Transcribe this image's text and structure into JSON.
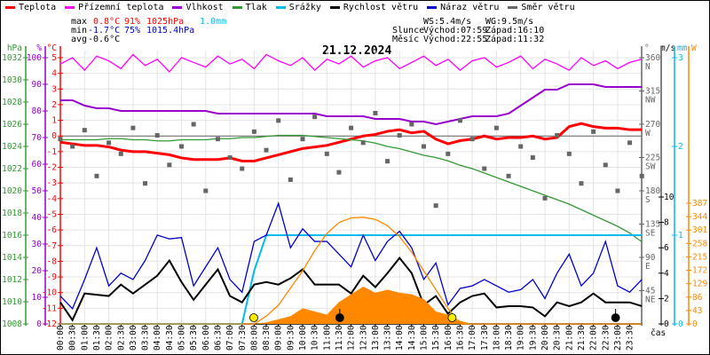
{
  "legend": [
    {
      "label": "Teplota",
      "color": "#ff0000"
    },
    {
      "label": "Přízemní teplota",
      "color": "#ff00ff"
    },
    {
      "label": "Vlhkost",
      "color": "#9900cc"
    },
    {
      "label": "Tlak",
      "color": "#339933"
    },
    {
      "label": "Srážky",
      "color": "#00bbee"
    },
    {
      "label": "Rychlost větru",
      "color": "#000000"
    },
    {
      "label": "Náraz větru",
      "color": "#0000cc"
    },
    {
      "label": "Směr větru",
      "color": "#666666"
    }
  ],
  "stats": {
    "max_label": "max",
    "max_temp": "0.8°C",
    "max_hum": "91%",
    "max_press": "1025hPa",
    "rain": "1.0mm",
    "min_label": "min",
    "min_temp": "-1.7°C",
    "min_hum": "75%",
    "min_press": "1015.4hPa",
    "avg_label": "avg",
    "avg_temp": "-0.6°C",
    "ws": "WS:5.4m/s",
    "wg": "WG:9.5m/s",
    "sun_label": "Slunce",
    "sunrise": "Východ:07:59",
    "sunset": "Západ:16:10",
    "moon_label": "Měsíc",
    "moonrise": "Východ:22:55",
    "moonset": "Západ:11:32"
  },
  "chart_data": {
    "type": "line",
    "title": "21.12.2024",
    "xlabel": "čas",
    "x_ticks": [
      "00:00",
      "00:30",
      "01:00",
      "01:30",
      "02:00",
      "02:30",
      "03:00",
      "03:30",
      "04:00",
      "04:30",
      "05:00",
      "05:30",
      "06:00",
      "06:30",
      "07:00",
      "07:30",
      "08:00",
      "08:30",
      "09:00",
      "09:30",
      "10:00",
      "10:30",
      "11:00",
      "11:30",
      "12:00",
      "12:30",
      "13:00",
      "13:30",
      "14:00",
      "14:30",
      "15:00",
      "15:30",
      "16:00",
      "16:30",
      "17:00",
      "17:30",
      "18:00",
      "18:30",
      "19:00",
      "19:30",
      "20:00",
      "20:30",
      "21:00",
      "21:30",
      "22:00",
      "22:30",
      "23:00",
      "23:30"
    ],
    "axes": {
      "pressure": {
        "unit": "hPa",
        "range": [
          1008,
          1032
        ],
        "ticks": [
          1032,
          1030,
          1028,
          1026,
          1024,
          1022,
          1020,
          1018,
          1016,
          1014,
          1012,
          1010,
          1008
        ],
        "color": "#339933"
      },
      "humidity": {
        "unit": "%",
        "range": [
          0,
          100
        ],
        "ticks": [
          100,
          90,
          80,
          70,
          60,
          50,
          40,
          30,
          20,
          10,
          0
        ],
        "color": "#9900cc"
      },
      "temperature": {
        "unit": "°C",
        "range": [
          -12,
          5
        ],
        "ticks": [
          5,
          4,
          3,
          2,
          1,
          0,
          -1,
          -2,
          -3,
          -4,
          -5,
          -6,
          -7,
          -8,
          -9,
          -10,
          -11,
          -12
        ],
        "color": "#ff0000"
      },
      "direction": {
        "unit": "°",
        "range": [
          0,
          360
        ],
        "ticks": [
          {
            "v": 360,
            "l": "N"
          },
          {
            "v": 315,
            "l": "NW"
          },
          {
            "v": 270,
            "l": "W"
          },
          {
            "v": 225,
            "l": "SW"
          },
          {
            "v": 180,
            "l": "S"
          },
          {
            "v": 135,
            "l": "SE"
          },
          {
            "v": 90,
            "l": "E"
          },
          {
            "v": 45,
            "l": "NE"
          }
        ],
        "color": "#666666"
      },
      "wind": {
        "unit": "m/s",
        "range": [
          0,
          21
        ],
        "ticks": [
          0,
          2,
          4,
          6,
          8,
          10
        ],
        "color": "#000000"
      },
      "rain": {
        "unit": "mm",
        "range": [
          0,
          3
        ],
        "ticks": [
          0,
          1,
          2,
          3
        ],
        "color": "#00bbee"
      },
      "solar": {
        "unit": "W",
        "range": [
          0,
          387
        ],
        "ticks": [
          0,
          43,
          86,
          129,
          172,
          215,
          258,
          301,
          344,
          387
        ],
        "color": "#ff8800"
      }
    },
    "time_hours_step": 0.5,
    "series": [
      {
        "name": "Teplota",
        "axis": "temperature",
        "color": "#ff0000",
        "values": [
          -0.4,
          -0.5,
          -0.6,
          -0.6,
          -0.7,
          -0.9,
          -1.0,
          -1.0,
          -1.1,
          -1.2,
          -1.4,
          -1.5,
          -1.5,
          -1.5,
          -1.4,
          -1.6,
          -1.6,
          -1.4,
          -1.2,
          -1.0,
          -0.8,
          -0.7,
          -0.6,
          -0.4,
          -0.2,
          0.0,
          0.1,
          0.3,
          0.4,
          0.2,
          0.3,
          -0.2,
          -0.5,
          -0.3,
          -0.2,
          0.0,
          -0.2,
          -0.1,
          -0.1,
          0.0,
          -0.2,
          -0.1,
          0.6,
          0.8,
          0.6,
          0.5,
          0.5,
          0.4,
          0.4
        ]
      },
      {
        "name": "Přízemní teplota",
        "axis": "temperature",
        "color": "#ff00ff",
        "values": [
          4.6,
          5.0,
          4.2,
          5.1,
          4.8,
          4.3,
          5.2,
          4.5,
          4.9,
          4.1,
          5.0,
          4.7,
          4.4,
          5.1,
          4.6,
          4.9,
          4.3,
          5.2,
          4.8,
          4.5,
          5.0,
          4.2,
          4.9,
          4.6,
          5.1,
          4.4,
          4.8,
          5.0,
          4.3,
          4.7,
          5.1,
          4.5,
          4.9,
          4.2,
          4.8,
          5.0,
          4.4,
          4.7,
          5.1,
          4.3,
          4.9,
          4.6,
          4.2,
          5.0,
          4.5,
          4.8,
          4.3,
          4.7,
          4.9
        ]
      },
      {
        "name": "Vlhkost",
        "axis": "humidity",
        "color": "#9900cc",
        "values": [
          84,
          84,
          82,
          81,
          81,
          80,
          80,
          80,
          80,
          80,
          80,
          80,
          80,
          79,
          79,
          79,
          79,
          79,
          79,
          79,
          79,
          79,
          78,
          78,
          78,
          78,
          77,
          77,
          77,
          76,
          76,
          75,
          76,
          77,
          78,
          78,
          78,
          79,
          82,
          85,
          88,
          88,
          90,
          90,
          90,
          89,
          89,
          89,
          89
        ]
      },
      {
        "name": "Tlak",
        "axis": "pressure",
        "color": "#339933",
        "values": [
          1024.6,
          1024.6,
          1024.6,
          1024.6,
          1024.7,
          1024.7,
          1024.6,
          1024.6,
          1024.5,
          1024.5,
          1024.6,
          1024.6,
          1024.6,
          1024.7,
          1024.7,
          1024.8,
          1024.8,
          1024.9,
          1025.0,
          1025.0,
          1025.0,
          1024.9,
          1024.8,
          1024.7,
          1024.6,
          1024.5,
          1024.3,
          1024.0,
          1023.8,
          1023.5,
          1023.2,
          1023.0,
          1022.7,
          1022.3,
          1022.0,
          1021.6,
          1021.2,
          1020.8,
          1020.4,
          1020.0,
          1019.6,
          1019.2,
          1018.8,
          1018.3,
          1017.8,
          1017.3,
          1016.8,
          1016.2,
          1015.4
        ]
      },
      {
        "name": "Srážky",
        "axis": "rain",
        "color": "#00bbee",
        "values": [
          0,
          0,
          0,
          0,
          0,
          0,
          0,
          0,
          0,
          0,
          0,
          0,
          0,
          0,
          0,
          0,
          0.6,
          1.0,
          1.0,
          1.0,
          1.0,
          1.0,
          1.0,
          1.0,
          1.0,
          1.0,
          1.0,
          1.0,
          1.0,
          1.0,
          1.0,
          1.0,
          1.0,
          1.0,
          1.0,
          1.0,
          1.0,
          1.0,
          1.0,
          1.0,
          1.0,
          1.0,
          1.0,
          1.0,
          1.0,
          1.0,
          1.0,
          1.0,
          1.0
        ]
      },
      {
        "name": "Rychlost větru",
        "axis": "wind",
        "color": "#000000",
        "values": [
          1.7,
          0.3,
          2.4,
          2.3,
          2.2,
          3.1,
          2.4,
          3.1,
          3.8,
          5.0,
          3.3,
          1.9,
          3.1,
          4.3,
          2.2,
          1.7,
          3.1,
          3.3,
          3.1,
          3.6,
          4.3,
          3.1,
          3.1,
          3.1,
          2.4,
          3.8,
          2.9,
          4.0,
          5.2,
          4.0,
          1.5,
          2.2,
          0.8,
          1.7,
          2.2,
          2.4,
          1.3,
          1.4,
          1.4,
          1.3,
          0.6,
          1.7,
          1.4,
          1.7,
          2.4,
          1.7,
          1.7,
          1.7,
          1.4
        ]
      },
      {
        "name": "Náraz větru",
        "axis": "wind",
        "color": "#0000cc",
        "values": [
          2.2,
          1.2,
          3.5,
          6.0,
          3.0,
          4.0,
          3.5,
          5.0,
          7.0,
          6.7,
          6.8,
          3.0,
          4.5,
          6.0,
          3.5,
          2.5,
          6.5,
          7.0,
          9.5,
          6.0,
          7.5,
          6.5,
          6.5,
          5.5,
          4.5,
          7.0,
          5.0,
          6.5,
          7.3,
          6.0,
          3.5,
          4.8,
          1.5,
          2.8,
          3.0,
          3.5,
          3.0,
          2.5,
          2.7,
          3.5,
          2.0,
          4.0,
          5.5,
          3.0,
          4.0,
          6.5,
          3.0,
          2.5,
          3.5
        ]
      },
      {
        "name": "Směr větru",
        "axis": "direction",
        "color": "#666666",
        "marker": "square",
        "values": [
          250,
          240,
          262,
          200,
          245,
          230,
          265,
          190,
          255,
          215,
          240,
          270,
          180,
          250,
          225,
          210,
          260,
          235,
          275,
          195,
          250,
          280,
          230,
          205,
          265,
          245,
          285,
          220,
          255,
          270,
          240,
          160,
          230,
          275,
          250,
          210,
          265,
          200,
          240,
          225,
          170,
          255,
          230,
          190,
          260,
          215,
          180,
          245,
          200
        ]
      },
      {
        "axis": "solar",
        "color": "#ff8800",
        "fill": true,
        "values": [
          0,
          0,
          0,
          0,
          0,
          0,
          0,
          0,
          0,
          0,
          0,
          0,
          0,
          0,
          0,
          0,
          0,
          5,
          15,
          25,
          50,
          40,
          30,
          70,
          95,
          120,
          100,
          110,
          100,
          95,
          80,
          40,
          30,
          10,
          0,
          0,
          0,
          0,
          0,
          0,
          0,
          0,
          0,
          0,
          0,
          0,
          0,
          0,
          0
        ]
      },
      {
        "axis": "solar",
        "color": "#ff8800",
        "values": [
          0,
          0,
          0,
          0,
          0,
          0,
          0,
          0,
          0,
          0,
          0,
          0,
          0,
          0,
          0,
          0,
          0,
          25,
          60,
          115,
          170,
          235,
          290,
          325,
          340,
          342,
          335,
          315,
          280,
          230,
          170,
          110,
          50,
          0,
          0,
          0,
          0,
          0,
          0,
          0,
          0,
          0,
          0,
          0,
          0,
          0,
          0,
          0,
          0
        ]
      }
    ],
    "events": [
      {
        "type": "sunrise",
        "time": "07:59",
        "color": "#ffee00"
      },
      {
        "type": "sunset",
        "time": "16:10",
        "color": "#ffee00"
      },
      {
        "type": "moonset",
        "time": "11:32",
        "color": "#000000"
      },
      {
        "type": "moonrise",
        "time": "22:55",
        "color": "#000000"
      }
    ],
    "reference_line": {
      "axis": "temperature",
      "value": 0,
      "color": "#666666"
    },
    "grid": true
  }
}
